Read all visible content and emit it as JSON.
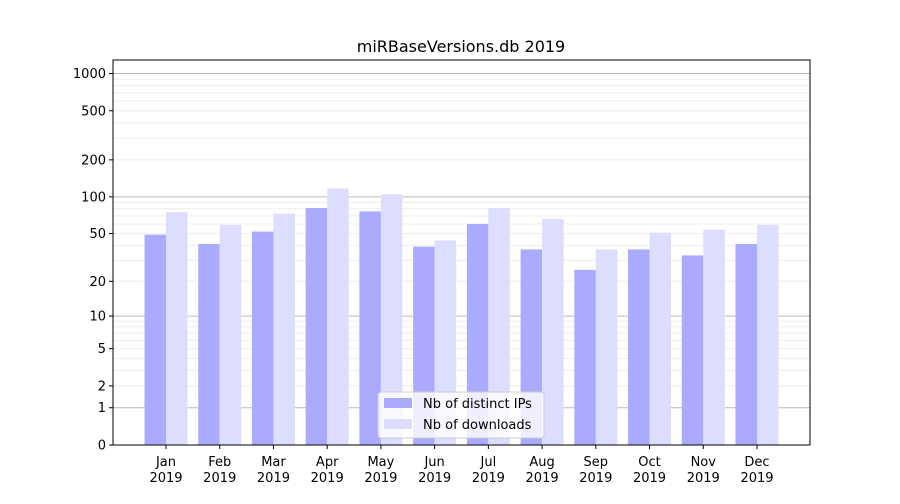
{
  "chart_data": {
    "type": "bar",
    "title": "miRBaseVersions.db 2019",
    "xlabel": "",
    "ylabel": "",
    "yscale": "log10(1+y)",
    "ylim": [
      0,
      1200
    ],
    "yticks": [
      0,
      1,
      2,
      5,
      10,
      20,
      50,
      100,
      200,
      500,
      1000
    ],
    "categories": [
      "Jan\n2019",
      "Feb\n2019",
      "Mar\n2019",
      "Apr\n2019",
      "May\n2019",
      "Jun\n2019",
      "Jul\n2019",
      "Aug\n2019",
      "Sep\n2019",
      "Oct\n2019",
      "Nov\n2019",
      "Dec\n2019"
    ],
    "series": [
      {
        "name": "Nb of distinct IPs",
        "color": "#aaaaff",
        "values": [
          49,
          41,
          52,
          81,
          76,
          39,
          60,
          37,
          25,
          37,
          33,
          41
        ]
      },
      {
        "name": "Nb of downloads",
        "color": "#ddddff",
        "values": [
          75,
          59,
          73,
          117,
          105,
          44,
          81,
          66,
          37,
          51,
          54,
          59
        ]
      }
    ],
    "grid": true,
    "legend": "bottom-center"
  }
}
